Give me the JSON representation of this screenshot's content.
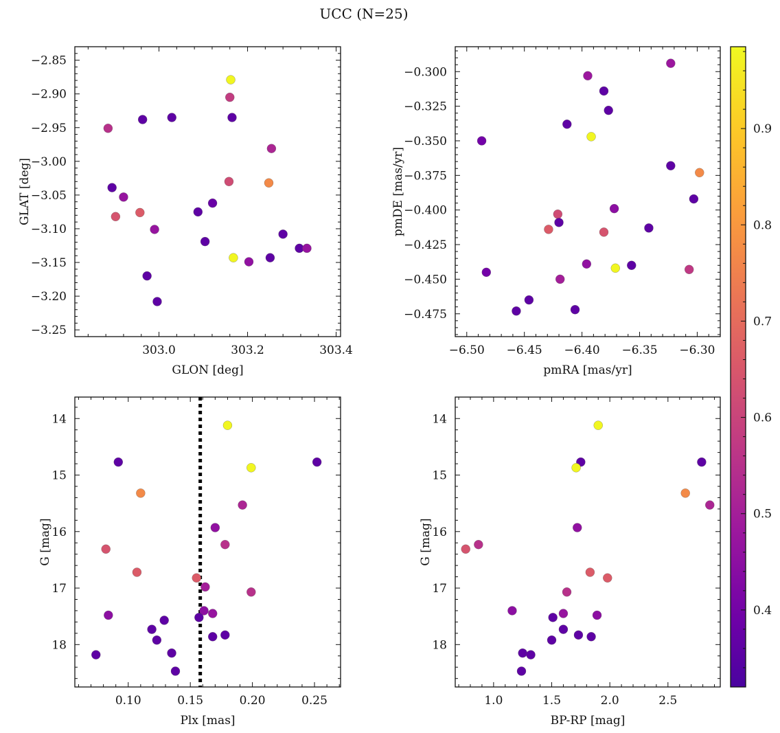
{
  "title": "UCC (N=25)",
  "colorbar": {
    "range": [
      0.32,
      0.985
    ],
    "ticks": [
      0.4,
      0.5,
      0.6,
      0.7,
      0.8,
      0.9
    ],
    "colormap": "plasma",
    "colormap_stops": [
      "#0d0887",
      "#46039f",
      "#7201a8",
      "#9c179e",
      "#bd3786",
      "#d8576b",
      "#ed7953",
      "#fb9f3a",
      "#fdca26",
      "#f0f921"
    ]
  },
  "chart_data": [
    {
      "id": "glon-glat",
      "type": "scatter",
      "xlabel": "GLON [deg]",
      "ylabel": "GLAT [deg]",
      "xlim": [
        302.81,
        303.41
      ],
      "ylim": [
        -3.26,
        -2.83
      ],
      "y_inverted": false,
      "xticks": [
        303.0,
        303.2,
        303.4
      ],
      "xtick_labels": [
        "303.0",
        "303.2",
        "303.4"
      ],
      "yticks": [
        -2.85,
        -2.9,
        -2.95,
        -3.0,
        -3.05,
        -3.1,
        -3.15,
        -3.2,
        -3.25
      ],
      "ytick_labels": [
        "−2.85",
        "−2.90",
        "−2.95",
        "−3.00",
        "−3.05",
        "−3.10",
        "−3.15",
        "−3.20",
        "−3.25"
      ],
      "points": [
        {
          "x": 303.162,
          "y": -2.879,
          "c": 0.98
        },
        {
          "x": 303.16,
          "y": -2.905,
          "c": 0.58
        },
        {
          "x": 303.165,
          "y": -2.935,
          "c": 0.36
        },
        {
          "x": 302.885,
          "y": -2.951,
          "c": 0.55
        },
        {
          "x": 302.963,
          "y": -2.938,
          "c": 0.36
        },
        {
          "x": 303.029,
          "y": -2.935,
          "c": 0.36
        },
        {
          "x": 303.254,
          "y": -2.981,
          "c": 0.52
        },
        {
          "x": 303.158,
          "y": -3.03,
          "c": 0.62
        },
        {
          "x": 303.248,
          "y": -3.032,
          "c": 0.77
        },
        {
          "x": 302.894,
          "y": -3.039,
          "c": 0.36
        },
        {
          "x": 302.92,
          "y": -3.053,
          "c": 0.47
        },
        {
          "x": 302.902,
          "y": -3.082,
          "c": 0.64
        },
        {
          "x": 302.957,
          "y": -3.076,
          "c": 0.66
        },
        {
          "x": 303.088,
          "y": -3.075,
          "c": 0.36
        },
        {
          "x": 303.121,
          "y": -3.062,
          "c": 0.38
        },
        {
          "x": 302.99,
          "y": -3.101,
          "c": 0.47
        },
        {
          "x": 303.104,
          "y": -3.119,
          "c": 0.36
        },
        {
          "x": 303.28,
          "y": -3.108,
          "c": 0.36
        },
        {
          "x": 303.168,
          "y": -3.143,
          "c": 0.98
        },
        {
          "x": 303.203,
          "y": -3.149,
          "c": 0.46
        },
        {
          "x": 303.251,
          "y": -3.143,
          "c": 0.36
        },
        {
          "x": 303.317,
          "y": -3.129,
          "c": 0.36
        },
        {
          "x": 303.334,
          "y": -3.129,
          "c": 0.47
        },
        {
          "x": 302.973,
          "y": -3.17,
          "c": 0.36
        },
        {
          "x": 302.996,
          "y": -3.208,
          "c": 0.36
        }
      ]
    },
    {
      "id": "pm",
      "type": "scatter",
      "xlabel": "pmRA [mas/yr]",
      "ylabel": "pmDE [mas/yr]",
      "xlim": [
        -6.51,
        -6.28
      ],
      "ylim": [
        -0.4915,
        -0.282
      ],
      "y_inverted": false,
      "xticks": [
        -6.5,
        -6.45,
        -6.4,
        -6.35,
        -6.3
      ],
      "xtick_labels": [
        "−6.50",
        "−6.45",
        "−6.40",
        "−6.35",
        "−6.30"
      ],
      "yticks": [
        -0.3,
        -0.325,
        -0.35,
        -0.375,
        -0.4,
        -0.425,
        -0.45,
        -0.475
      ],
      "ytick_labels": [
        "−0.300",
        "−0.325",
        "−0.350",
        "−0.375",
        "−0.400",
        "−0.425",
        "−0.450",
        "−0.475"
      ],
      "points": [
        {
          "x": -6.323,
          "y": -0.294,
          "c": 0.48
        },
        {
          "x": -6.395,
          "y": -0.303,
          "c": 0.48
        },
        {
          "x": -6.381,
          "y": -0.314,
          "c": 0.36
        },
        {
          "x": -6.377,
          "y": -0.328,
          "c": 0.36
        },
        {
          "x": -6.413,
          "y": -0.338,
          "c": 0.36
        },
        {
          "x": -6.392,
          "y": -0.347,
          "c": 0.98
        },
        {
          "x": -6.487,
          "y": -0.35,
          "c": 0.4
        },
        {
          "x": -6.323,
          "y": -0.368,
          "c": 0.36
        },
        {
          "x": -6.298,
          "y": -0.373,
          "c": 0.77
        },
        {
          "x": -6.303,
          "y": -0.392,
          "c": 0.36
        },
        {
          "x": -6.421,
          "y": -0.403,
          "c": 0.62
        },
        {
          "x": -6.372,
          "y": -0.399,
          "c": 0.45
        },
        {
          "x": -6.42,
          "y": -0.409,
          "c": 0.36
        },
        {
          "x": -6.429,
          "y": -0.414,
          "c": 0.66
        },
        {
          "x": -6.381,
          "y": -0.416,
          "c": 0.64
        },
        {
          "x": -6.342,
          "y": -0.413,
          "c": 0.36
        },
        {
          "x": -6.483,
          "y": -0.445,
          "c": 0.4
        },
        {
          "x": -6.396,
          "y": -0.439,
          "c": 0.46
        },
        {
          "x": -6.371,
          "y": -0.442,
          "c": 0.98
        },
        {
          "x": -6.357,
          "y": -0.44,
          "c": 0.36
        },
        {
          "x": -6.307,
          "y": -0.443,
          "c": 0.57
        },
        {
          "x": -6.419,
          "y": -0.45,
          "c": 0.5
        },
        {
          "x": -6.446,
          "y": -0.465,
          "c": 0.36
        },
        {
          "x": -6.457,
          "y": -0.473,
          "c": 0.36
        },
        {
          "x": -6.406,
          "y": -0.472,
          "c": 0.36
        }
      ]
    },
    {
      "id": "plx-g",
      "type": "scatter",
      "xlabel": "Plx [mas]",
      "ylabel": "G [mag]",
      "xlim": [
        0.057,
        0.271
      ],
      "ylim": [
        18.75,
        13.62
      ],
      "y_inverted": true,
      "xticks": [
        0.1,
        0.15,
        0.2,
        0.25
      ],
      "xtick_labels": [
        "0.10",
        "0.15",
        "0.20",
        "0.25"
      ],
      "yticks": [
        14,
        15,
        16,
        17,
        18
      ],
      "ytick_labels": [
        "14",
        "15",
        "16",
        "17",
        "18"
      ],
      "vline": {
        "x": 0.158,
        "style": "dotted"
      },
      "points": [
        {
          "x": 0.18,
          "y": 14.12,
          "c": 0.98
        },
        {
          "x": 0.092,
          "y": 14.77,
          "c": 0.36
        },
        {
          "x": 0.252,
          "y": 14.77,
          "c": 0.36
        },
        {
          "x": 0.199,
          "y": 14.87,
          "c": 0.98
        },
        {
          "x": 0.11,
          "y": 15.32,
          "c": 0.77
        },
        {
          "x": 0.192,
          "y": 15.53,
          "c": 0.52
        },
        {
          "x": 0.17,
          "y": 15.93,
          "c": 0.46
        },
        {
          "x": 0.178,
          "y": 16.23,
          "c": 0.55
        },
        {
          "x": 0.082,
          "y": 16.31,
          "c": 0.64
        },
        {
          "x": 0.107,
          "y": 16.72,
          "c": 0.66
        },
        {
          "x": 0.155,
          "y": 16.82,
          "c": 0.66
        },
        {
          "x": 0.162,
          "y": 16.98,
          "c": 0.5
        },
        {
          "x": 0.199,
          "y": 17.07,
          "c": 0.55
        },
        {
          "x": 0.161,
          "y": 17.4,
          "c": 0.45
        },
        {
          "x": 0.168,
          "y": 17.45,
          "c": 0.47
        },
        {
          "x": 0.084,
          "y": 17.48,
          "c": 0.45
        },
        {
          "x": 0.157,
          "y": 17.52,
          "c": 0.36
        },
        {
          "x": 0.129,
          "y": 17.57,
          "c": 0.36
        },
        {
          "x": 0.119,
          "y": 17.73,
          "c": 0.36
        },
        {
          "x": 0.178,
          "y": 17.83,
          "c": 0.36
        },
        {
          "x": 0.168,
          "y": 17.86,
          "c": 0.36
        },
        {
          "x": 0.123,
          "y": 17.92,
          "c": 0.36
        },
        {
          "x": 0.135,
          "y": 18.15,
          "c": 0.36
        },
        {
          "x": 0.074,
          "y": 18.18,
          "c": 0.36
        },
        {
          "x": 0.138,
          "y": 18.47,
          "c": 0.36
        }
      ]
    },
    {
      "id": "cmd",
      "type": "scatter",
      "xlabel": "BP-RP [mag]",
      "ylabel": "G [mag]",
      "xlim": [
        0.67,
        2.95
      ],
      "ylim": [
        18.75,
        13.62
      ],
      "y_inverted": true,
      "xticks": [
        1.0,
        1.5,
        2.0,
        2.5
      ],
      "xtick_labels": [
        "1.0",
        "1.5",
        "2.0",
        "2.5"
      ],
      "yticks": [
        14,
        15,
        16,
        17,
        18
      ],
      "ytick_labels": [
        "14",
        "15",
        "16",
        "17",
        "18"
      ],
      "points": [
        {
          "x": 1.9,
          "y": 14.12,
          "c": 0.98
        },
        {
          "x": 1.75,
          "y": 14.77,
          "c": 0.36
        },
        {
          "x": 2.79,
          "y": 14.77,
          "c": 0.36
        },
        {
          "x": 1.71,
          "y": 14.87,
          "c": 0.98
        },
        {
          "x": 2.65,
          "y": 15.32,
          "c": 0.77
        },
        {
          "x": 2.86,
          "y": 15.53,
          "c": 0.52
        },
        {
          "x": 1.72,
          "y": 15.93,
          "c": 0.46
        },
        {
          "x": 0.87,
          "y": 16.23,
          "c": 0.55
        },
        {
          "x": 0.76,
          "y": 16.31,
          "c": 0.64
        },
        {
          "x": 1.83,
          "y": 16.72,
          "c": 0.66
        },
        {
          "x": 1.98,
          "y": 16.82,
          "c": 0.66
        },
        {
          "x": 1.63,
          "y": 17.07,
          "c": 0.55
        },
        {
          "x": 1.16,
          "y": 17.4,
          "c": 0.45
        },
        {
          "x": 1.6,
          "y": 17.45,
          "c": 0.47
        },
        {
          "x": 1.89,
          "y": 17.48,
          "c": 0.45
        },
        {
          "x": 1.51,
          "y": 17.52,
          "c": 0.36
        },
        {
          "x": 1.6,
          "y": 17.73,
          "c": 0.36
        },
        {
          "x": 1.73,
          "y": 17.83,
          "c": 0.36
        },
        {
          "x": 1.84,
          "y": 17.86,
          "c": 0.36
        },
        {
          "x": 1.5,
          "y": 17.92,
          "c": 0.36
        },
        {
          "x": 1.25,
          "y": 18.15,
          "c": 0.36
        },
        {
          "x": 1.32,
          "y": 18.18,
          "c": 0.36
        },
        {
          "x": 1.24,
          "y": 18.47,
          "c": 0.36
        }
      ]
    }
  ]
}
